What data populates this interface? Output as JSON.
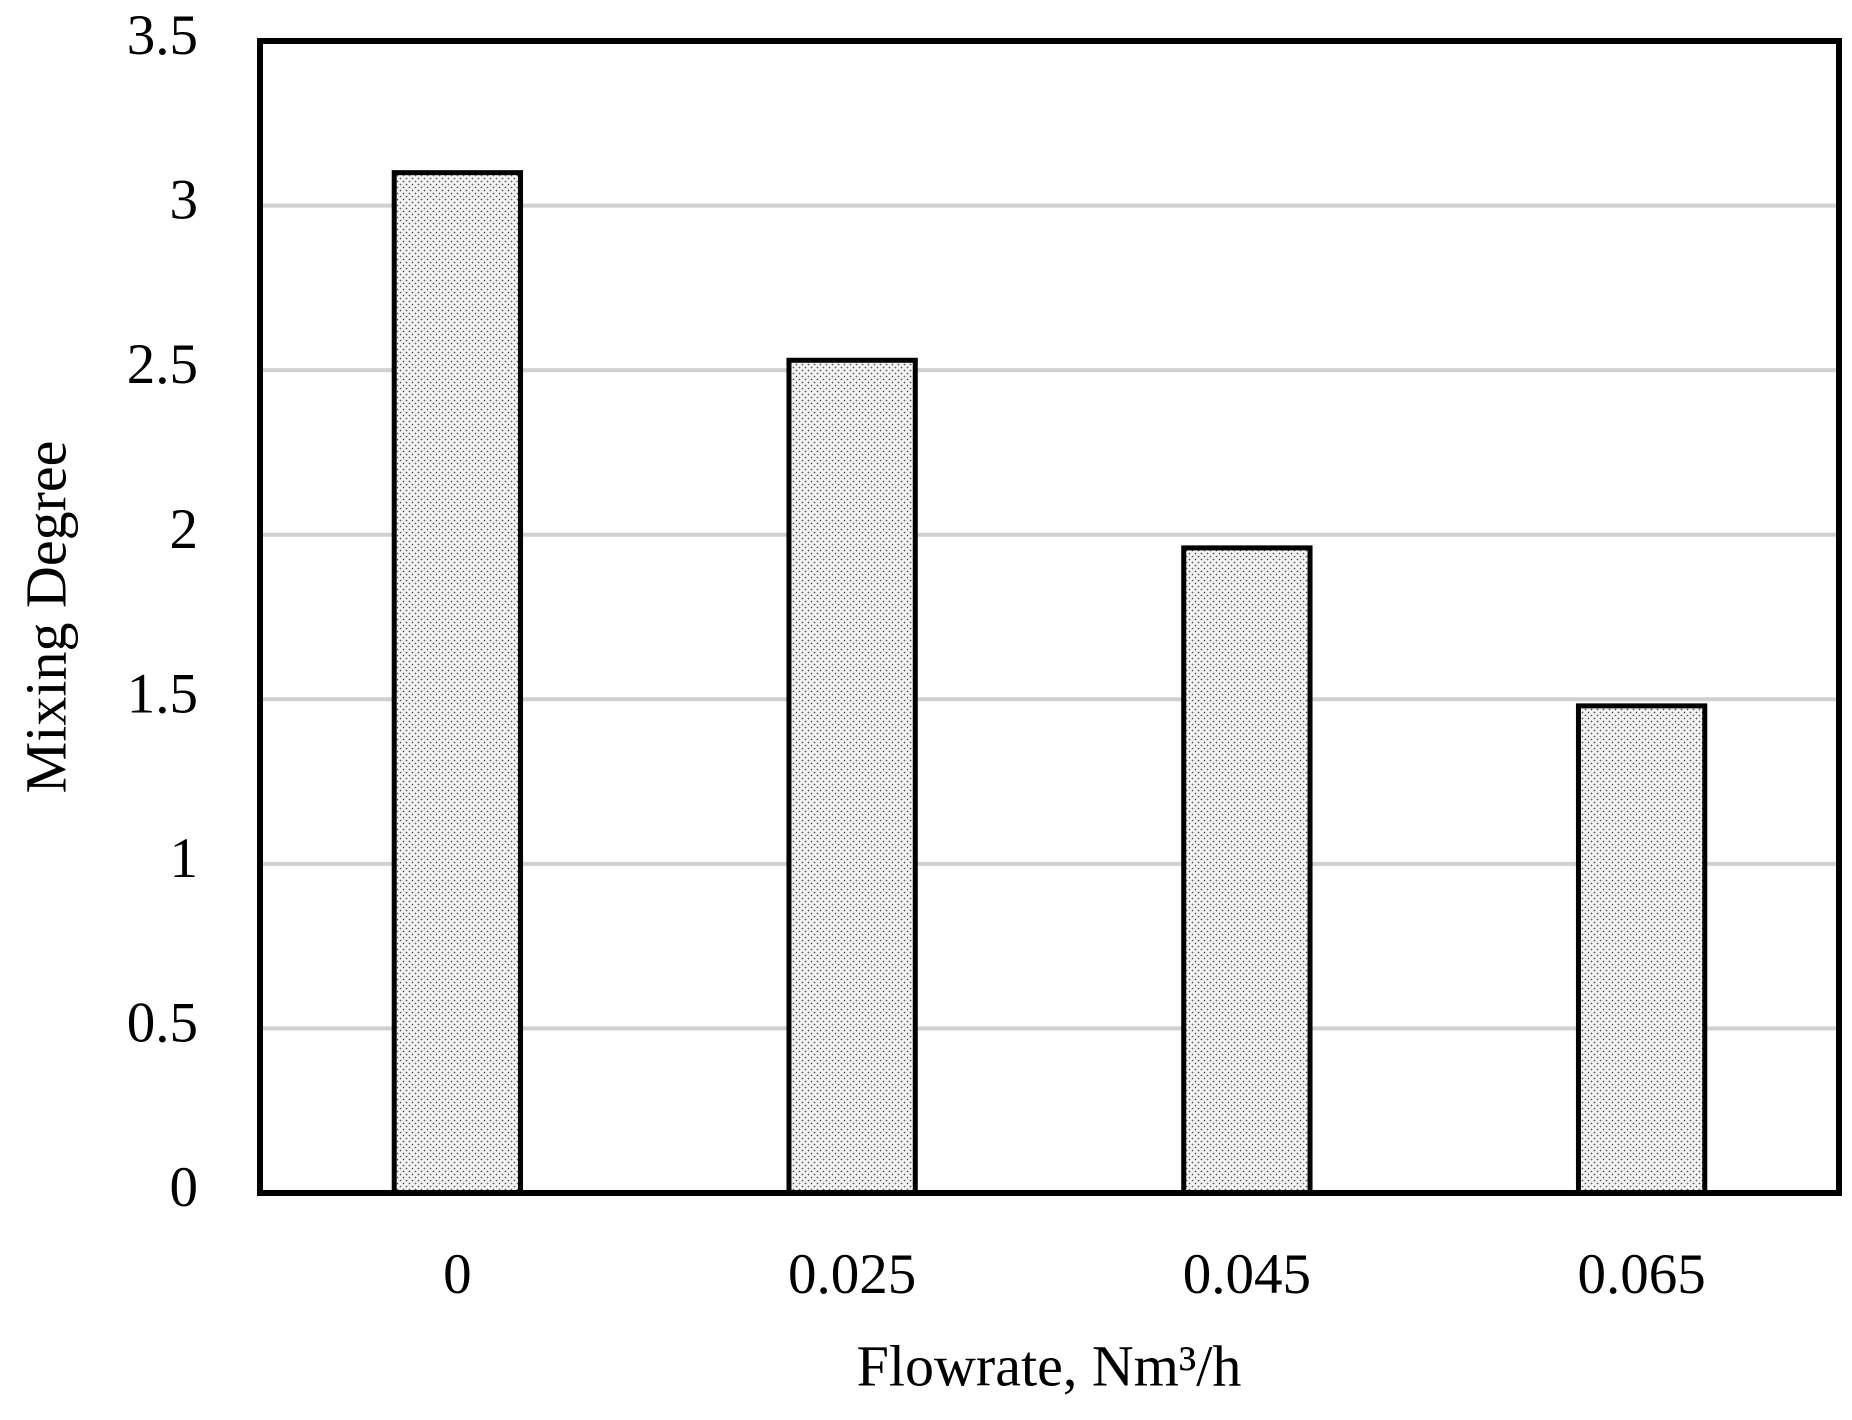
{
  "chart_data": {
    "type": "bar",
    "x_label": "Flowrate, Nm³/h",
    "y_label": "Mixing Degree",
    "categories": [
      "0",
      "0.025",
      "0.045",
      "0.065"
    ],
    "values": [
      3.1,
      2.53,
      1.96,
      1.48
    ],
    "ylim": [
      0,
      3.5
    ],
    "yticks": [
      0,
      0.5,
      1,
      1.5,
      2,
      2.5,
      3,
      3.5
    ],
    "grid": true
  }
}
